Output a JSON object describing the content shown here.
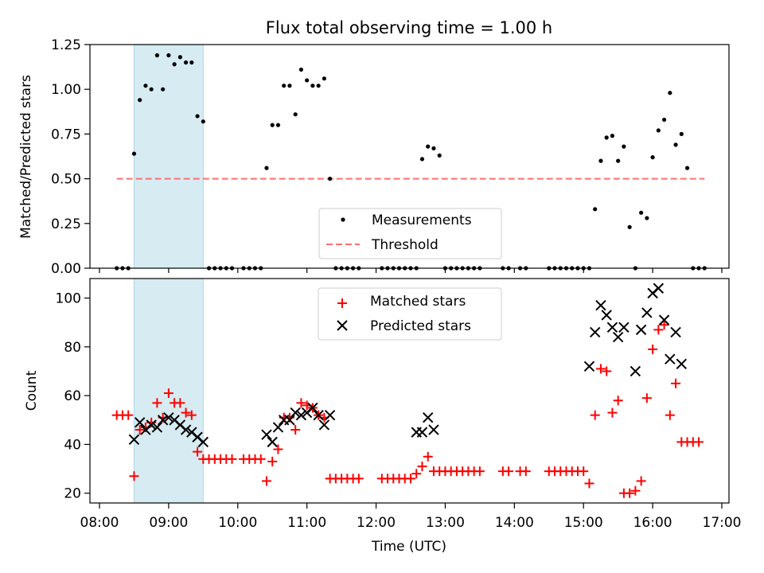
{
  "chart_data": [
    {
      "type": "scatter",
      "title": "Flux total observing time = 1.00 h",
      "xlabel": "",
      "ylabel": "Matched/Predicted stars",
      "xlim": [
        "08:00",
        "17:00"
      ],
      "ylim": [
        0,
        1.25
      ],
      "yticks": [
        0,
        0.25,
        0.5,
        0.75,
        1.0,
        1.25
      ],
      "ytick_labels": [
        "0.00",
        "0.25",
        "0.50",
        "0.75",
        "1.00",
        "1.25"
      ],
      "highlight_span": {
        "start": "08:30",
        "end": "09:30",
        "color": "#add8e6"
      },
      "legend": {
        "placement": "lower-center",
        "entries": [
          {
            "label": "Measurements",
            "marker": "dot",
            "color": "#000000"
          },
          {
            "label": "Threshold",
            "marker": "dashed-line",
            "color": "#ff7070"
          }
        ]
      },
      "series": [
        {
          "name": "Measurements",
          "marker": "dot",
          "color": "#000000",
          "points": [
            [
              "08:15",
              0
            ],
            [
              "08:20",
              0
            ],
            [
              "08:25",
              0
            ],
            [
              "08:30",
              0.64
            ],
            [
              "08:35",
              0.94
            ],
            [
              "08:40",
              1.02
            ],
            [
              "08:45",
              1.0
            ],
            [
              "08:50",
              1.19
            ],
            [
              "08:55",
              1.0
            ],
            [
              "09:00",
              1.19
            ],
            [
              "09:05",
              1.14
            ],
            [
              "09:10",
              1.18
            ],
            [
              "09:15",
              1.15
            ],
            [
              "09:20",
              1.15
            ],
            [
              "09:25",
              0.85
            ],
            [
              "09:30",
              0.82
            ],
            [
              "09:35",
              0
            ],
            [
              "09:40",
              0
            ],
            [
              "09:45",
              0
            ],
            [
              "09:50",
              0
            ],
            [
              "09:55",
              0
            ],
            [
              "10:05",
              0
            ],
            [
              "10:10",
              0
            ],
            [
              "10:15",
              0
            ],
            [
              "10:20",
              0
            ],
            [
              "10:25",
              0.56
            ],
            [
              "10:30",
              0.8
            ],
            [
              "10:35",
              0.8
            ],
            [
              "10:40",
              1.02
            ],
            [
              "10:45",
              1.02
            ],
            [
              "10:50",
              0.86
            ],
            [
              "10:55",
              1.11
            ],
            [
              "11:00",
              1.05
            ],
            [
              "11:05",
              1.02
            ],
            [
              "11:10",
              1.02
            ],
            [
              "11:15",
              1.06
            ],
            [
              "11:20",
              0.5
            ],
            [
              "11:25",
              0
            ],
            [
              "11:30",
              0
            ],
            [
              "11:35",
              0
            ],
            [
              "11:40",
              0
            ],
            [
              "11:45",
              0
            ],
            [
              "12:05",
              0
            ],
            [
              "12:10",
              0
            ],
            [
              "12:15",
              0
            ],
            [
              "12:20",
              0
            ],
            [
              "12:25",
              0
            ],
            [
              "12:30",
              0
            ],
            [
              "12:35",
              0
            ],
            [
              "12:40",
              0.61
            ],
            [
              "12:45",
              0.68
            ],
            [
              "12:50",
              0.67
            ],
            [
              "12:55",
              0.63
            ],
            [
              "13:00",
              0
            ],
            [
              "13:05",
              0
            ],
            [
              "13:10",
              0
            ],
            [
              "13:15",
              0
            ],
            [
              "13:20",
              0
            ],
            [
              "13:25",
              0
            ],
            [
              "13:30",
              0
            ],
            [
              "13:50",
              0
            ],
            [
              "13:55",
              0
            ],
            [
              "14:05",
              0
            ],
            [
              "14:10",
              0
            ],
            [
              "14:30",
              0
            ],
            [
              "14:35",
              0
            ],
            [
              "14:40",
              0
            ],
            [
              "14:45",
              0
            ],
            [
              "14:50",
              0
            ],
            [
              "14:55",
              0
            ],
            [
              "15:00",
              0
            ],
            [
              "15:05",
              0
            ],
            [
              "15:10",
              0.33
            ],
            [
              "15:15",
              0.6
            ],
            [
              "15:20",
              0.73
            ],
            [
              "15:25",
              0.74
            ],
            [
              "15:30",
              0.6
            ],
            [
              "15:35",
              0.68
            ],
            [
              "15:40",
              0.23
            ],
            [
              "15:45",
              0
            ],
            [
              "15:50",
              0.31
            ],
            [
              "15:55",
              0.28
            ],
            [
              "16:00",
              0.62
            ],
            [
              "16:05",
              0.77
            ],
            [
              "16:10",
              0.83
            ],
            [
              "16:15",
              0.98
            ],
            [
              "16:20",
              0.69
            ],
            [
              "16:25",
              0.75
            ],
            [
              "16:30",
              0.56
            ],
            [
              "16:35",
              0
            ],
            [
              "16:40",
              0
            ],
            [
              "16:45",
              0
            ]
          ]
        },
        {
          "name": "Threshold",
          "marker": "dashed-line",
          "color": "#ff7070",
          "points": [
            [
              "08:15",
              0.5
            ],
            [
              "16:45",
              0.5
            ]
          ]
        }
      ]
    },
    {
      "type": "scatter",
      "title": "",
      "xlabel": "Time (UTC)",
      "ylabel": "Count",
      "xlim": [
        "08:00",
        "17:00"
      ],
      "ylim": [
        16,
        108
      ],
      "yticks": [
        20,
        40,
        60,
        80,
        100
      ],
      "ytick_labels": [
        "20",
        "40",
        "60",
        "80",
        "100"
      ],
      "xticks": [
        "08:00",
        "09:00",
        "10:00",
        "11:00",
        "12:00",
        "13:00",
        "14:00",
        "15:00",
        "16:00",
        "17:00"
      ],
      "xtick_labels": [
        "08:00",
        "09:00",
        "10:00",
        "11:00",
        "12:00",
        "13:00",
        "14:00",
        "15:00",
        "16:00",
        "17:00"
      ],
      "highlight_span": {
        "start": "08:30",
        "end": "09:30",
        "color": "#add8e6"
      },
      "legend": {
        "placement": "upper-center",
        "entries": [
          {
            "label": "Matched stars",
            "marker": "plus",
            "color": "#ff0000"
          },
          {
            "label": "Predicted stars",
            "marker": "x",
            "color": "#000000"
          }
        ]
      },
      "series": [
        {
          "name": "Matched stars",
          "marker": "plus",
          "color": "#ff0000",
          "points": [
            [
              "08:15",
              52
            ],
            [
              "08:20",
              52
            ],
            [
              "08:25",
              52
            ],
            [
              "08:30",
              27
            ],
            [
              "08:35",
              46
            ],
            [
              "08:40",
              47
            ],
            [
              "08:45",
              49
            ],
            [
              "08:50",
              57
            ],
            [
              "08:55",
              51
            ],
            [
              "09:00",
              61
            ],
            [
              "09:05",
              57
            ],
            [
              "09:10",
              57
            ],
            [
              "09:15",
              53
            ],
            [
              "09:20",
              52
            ],
            [
              "09:25",
              37
            ],
            [
              "09:30",
              34
            ],
            [
              "09:35",
              34
            ],
            [
              "09:40",
              34
            ],
            [
              "09:45",
              34
            ],
            [
              "09:50",
              34
            ],
            [
              "09:55",
              34
            ],
            [
              "10:05",
              34
            ],
            [
              "10:10",
              34
            ],
            [
              "10:15",
              34
            ],
            [
              "10:20",
              34
            ],
            [
              "10:25",
              25
            ],
            [
              "10:30",
              33
            ],
            [
              "10:35",
              38
            ],
            [
              "10:40",
              51
            ],
            [
              "10:45",
              51
            ],
            [
              "10:50",
              46
            ],
            [
              "10:55",
              57
            ],
            [
              "11:00",
              56
            ],
            [
              "11:05",
              55
            ],
            [
              "11:10",
              52
            ],
            [
              "11:15",
              51
            ],
            [
              "11:20",
              26
            ],
            [
              "11:25",
              26
            ],
            [
              "11:30",
              26
            ],
            [
              "11:35",
              26
            ],
            [
              "11:40",
              26
            ],
            [
              "11:45",
              26
            ],
            [
              "12:05",
              26
            ],
            [
              "12:10",
              26
            ],
            [
              "12:15",
              26
            ],
            [
              "12:20",
              26
            ],
            [
              "12:25",
              26
            ],
            [
              "12:30",
              26
            ],
            [
              "12:35",
              28
            ],
            [
              "12:40",
              31
            ],
            [
              "12:45",
              35
            ],
            [
              "12:50",
              29
            ],
            [
              "12:55",
              29
            ],
            [
              "13:00",
              29
            ],
            [
              "13:05",
              29
            ],
            [
              "13:10",
              29
            ],
            [
              "13:15",
              29
            ],
            [
              "13:20",
              29
            ],
            [
              "13:25",
              29
            ],
            [
              "13:30",
              29
            ],
            [
              "13:50",
              29
            ],
            [
              "13:55",
              29
            ],
            [
              "14:05",
              29
            ],
            [
              "14:10",
              29
            ],
            [
              "14:30",
              29
            ],
            [
              "14:35",
              29
            ],
            [
              "14:40",
              29
            ],
            [
              "14:45",
              29
            ],
            [
              "14:50",
              29
            ],
            [
              "14:55",
              29
            ],
            [
              "15:00",
              29
            ],
            [
              "15:05",
              24
            ],
            [
              "15:10",
              52
            ],
            [
              "15:15",
              71
            ],
            [
              "15:20",
              70
            ],
            [
              "15:25",
              53
            ],
            [
              "15:30",
              58
            ],
            [
              "15:35",
              20
            ],
            [
              "15:40",
              20
            ],
            [
              "15:45",
              21
            ],
            [
              "15:50",
              25
            ],
            [
              "15:55",
              59
            ],
            [
              "16:00",
              79
            ],
            [
              "16:05",
              87
            ],
            [
              "16:10",
              89
            ],
            [
              "16:15",
              52
            ],
            [
              "16:20",
              65
            ],
            [
              "16:25",
              41
            ],
            [
              "16:30",
              41
            ],
            [
              "16:35",
              41
            ],
            [
              "16:40",
              41
            ]
          ]
        },
        {
          "name": "Predicted stars",
          "marker": "x",
          "color": "#000000",
          "points": [
            [
              "08:30",
              42
            ],
            [
              "08:35",
              49
            ],
            [
              "08:40",
              46
            ],
            [
              "08:45",
              48
            ],
            [
              "08:50",
              47
            ],
            [
              "08:55",
              50
            ],
            [
              "09:00",
              51
            ],
            [
              "09:05",
              50
            ],
            [
              "09:10",
              48
            ],
            [
              "09:15",
              46
            ],
            [
              "09:20",
              45
            ],
            [
              "09:25",
              43
            ],
            [
              "09:30",
              41
            ],
            [
              "10:25",
              44
            ],
            [
              "10:30",
              41
            ],
            [
              "10:35",
              47
            ],
            [
              "10:40",
              50
            ],
            [
              "10:45",
              50
            ],
            [
              "10:50",
              53
            ],
            [
              "10:55",
              52
            ],
            [
              "11:00",
              53
            ],
            [
              "11:05",
              55
            ],
            [
              "11:10",
              52
            ],
            [
              "11:15",
              48
            ],
            [
              "11:20",
              52
            ],
            [
              "12:35",
              45
            ],
            [
              "12:40",
              45
            ],
            [
              "12:45",
              51
            ],
            [
              "12:50",
              46
            ],
            [
              "15:05",
              72
            ],
            [
              "15:10",
              86
            ],
            [
              "15:15",
              97
            ],
            [
              "15:20",
              93
            ],
            [
              "15:25",
              88
            ],
            [
              "15:30",
              84
            ],
            [
              "15:35",
              88
            ],
            [
              "15:45",
              70
            ],
            [
              "15:50",
              87
            ],
            [
              "15:55",
              94
            ],
            [
              "16:00",
              102
            ],
            [
              "16:05",
              104
            ],
            [
              "16:10",
              91
            ],
            [
              "16:15",
              75
            ],
            [
              "16:20",
              86
            ],
            [
              "16:25",
              73
            ]
          ]
        }
      ]
    }
  ]
}
